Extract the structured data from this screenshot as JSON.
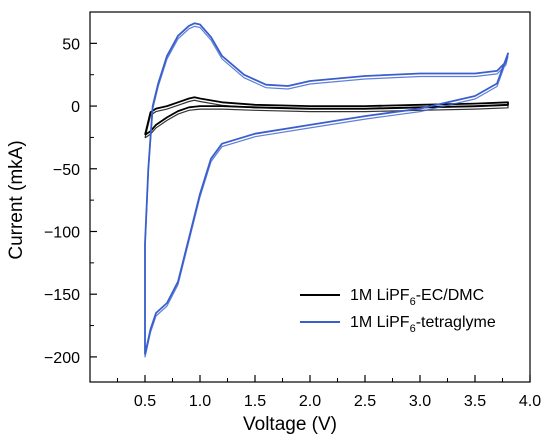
{
  "chart_data": {
    "type": "line",
    "xlabel": "Voltage (V)",
    "ylabel": "Current (mkA)",
    "xlim": [
      0,
      4.0
    ],
    "ylim": [
      -220,
      75
    ],
    "x_ticks": [
      "0.5",
      "1.0",
      "1.5",
      "2.0",
      "2.5",
      "3.0",
      "3.5",
      "4.0"
    ],
    "y_ticks": [
      "50",
      "0",
      "−50",
      "−100",
      "−150",
      "−200"
    ],
    "grid": false,
    "legend_position": "bottom-right",
    "series": [
      {
        "name_prefix": "1M LiPF",
        "name_sub": "6",
        "name_suffix": "-EC/DMC",
        "color": "#000000",
        "points": [
          [
            0.5,
            -23
          ],
          [
            0.55,
            -20
          ],
          [
            0.6,
            -15
          ],
          [
            0.7,
            -9
          ],
          [
            0.8,
            -4
          ],
          [
            0.9,
            -1
          ],
          [
            1.0,
            0
          ],
          [
            1.2,
            0
          ],
          [
            1.5,
            -1
          ],
          [
            2.0,
            -2
          ],
          [
            2.5,
            -2
          ],
          [
            3.0,
            -1
          ],
          [
            3.5,
            0
          ],
          [
            3.8,
            1
          ],
          [
            3.8,
            3
          ],
          [
            3.5,
            2
          ],
          [
            3.0,
            1
          ],
          [
            2.5,
            0
          ],
          [
            2.0,
            0
          ],
          [
            1.5,
            1
          ],
          [
            1.2,
            3
          ],
          [
            1.0,
            6
          ],
          [
            0.95,
            7
          ],
          [
            0.9,
            6
          ],
          [
            0.8,
            3
          ],
          [
            0.7,
            0
          ],
          [
            0.6,
            -2
          ],
          [
            0.55,
            -5
          ],
          [
            0.5,
            -23
          ]
        ]
      },
      {
        "name_prefix": "1M LiPF",
        "name_sub": "6",
        "name_suffix": "-tetraglyme",
        "color": "#3a5fcd",
        "points": [
          [
            0.5,
            -198
          ],
          [
            0.52,
            -190
          ],
          [
            0.55,
            -178
          ],
          [
            0.6,
            -165
          ],
          [
            0.7,
            -157
          ],
          [
            0.8,
            -140
          ],
          [
            0.9,
            -105
          ],
          [
            1.0,
            -70
          ],
          [
            1.1,
            -42
          ],
          [
            1.2,
            -30
          ],
          [
            1.5,
            -22
          ],
          [
            2.0,
            -15
          ],
          [
            2.5,
            -8
          ],
          [
            3.0,
            -2
          ],
          [
            3.5,
            8
          ],
          [
            3.7,
            18
          ],
          [
            3.8,
            42
          ],
          [
            3.78,
            35
          ],
          [
            3.7,
            28
          ],
          [
            3.5,
            26
          ],
          [
            3.2,
            26
          ],
          [
            3.0,
            26
          ],
          [
            2.5,
            24
          ],
          [
            2.0,
            20
          ],
          [
            1.8,
            16
          ],
          [
            1.6,
            17
          ],
          [
            1.4,
            25
          ],
          [
            1.2,
            40
          ],
          [
            1.1,
            55
          ],
          [
            1.0,
            65
          ],
          [
            0.95,
            66
          ],
          [
            0.9,
            64
          ],
          [
            0.8,
            56
          ],
          [
            0.7,
            40
          ],
          [
            0.62,
            18
          ],
          [
            0.57,
            0
          ],
          [
            0.53,
            -50
          ],
          [
            0.5,
            -110
          ],
          [
            0.5,
            -198
          ]
        ]
      }
    ]
  }
}
